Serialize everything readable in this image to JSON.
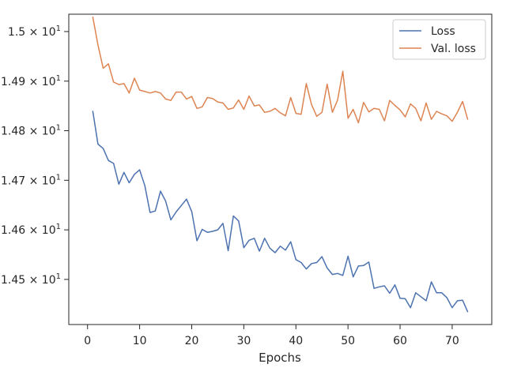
{
  "chart_data": {
    "type": "line",
    "xlabel": "Epochs",
    "ylabel": "",
    "xlim": [
      -3.6,
      77.6
    ],
    "ylim": [
      14.409,
      15.035
    ],
    "xticks": [
      0,
      10,
      20,
      30,
      40,
      50,
      60,
      70
    ],
    "yticks": [
      {
        "value": 14.5,
        "mantissa": "1.45",
        "exp": "1"
      },
      {
        "value": 14.6,
        "mantissa": "1.46",
        "exp": "1"
      },
      {
        "value": 14.7,
        "mantissa": "1.47",
        "exp": "1"
      },
      {
        "value": 14.8,
        "mantissa": "1.48",
        "exp": "1"
      },
      {
        "value": 14.9,
        "mantissa": "1.49",
        "exp": "1"
      },
      {
        "value": 15.0,
        "mantissa": "1.5",
        "exp": "1"
      }
    ],
    "tick_times": "×",
    "tick_base": "10",
    "legend_position": "top-right",
    "grid": false,
    "x": [
      1,
      2,
      3,
      4,
      5,
      6,
      7,
      8,
      9,
      10,
      11,
      12,
      13,
      14,
      15,
      16,
      17,
      18,
      19,
      20,
      21,
      22,
      23,
      24,
      25,
      26,
      27,
      28,
      29,
      30,
      31,
      32,
      33,
      34,
      35,
      36,
      37,
      38,
      39,
      40,
      41,
      42,
      43,
      44,
      45,
      46,
      47,
      48,
      49,
      50,
      51,
      52,
      53,
      54,
      55,
      56,
      57,
      58,
      59,
      60,
      61,
      62,
      63,
      64,
      65,
      66,
      67,
      68,
      69,
      70,
      71,
      72,
      73
    ],
    "series": [
      {
        "name": "Loss",
        "color": "#4c72b0",
        "values": [
          14.84,
          14.773,
          14.764,
          14.74,
          14.734,
          14.692,
          14.716,
          14.695,
          14.712,
          14.721,
          14.689,
          14.635,
          14.638,
          14.678,
          14.658,
          14.62,
          14.636,
          14.649,
          14.662,
          14.637,
          14.578,
          14.601,
          14.595,
          14.597,
          14.6,
          14.613,
          14.558,
          14.628,
          14.618,
          14.564,
          14.579,
          14.583,
          14.557,
          14.583,
          14.563,
          14.554,
          14.567,
          14.559,
          14.576,
          14.54,
          14.534,
          14.521,
          14.532,
          14.534,
          14.546,
          14.523,
          14.51,
          14.512,
          14.508,
          14.547,
          14.505,
          14.527,
          14.528,
          14.535,
          14.482,
          14.485,
          14.487,
          14.472,
          14.489,
          14.462,
          14.461,
          14.443,
          14.473,
          14.465,
          14.457,
          14.495,
          14.473,
          14.473,
          14.463,
          14.443,
          14.457,
          14.458,
          14.434
        ]
      },
      {
        "name": "Val. loss",
        "color": "#dd8452",
        "values": [
          15.03,
          14.973,
          14.926,
          14.935,
          14.898,
          14.893,
          14.895,
          14.876,
          14.906,
          14.882,
          14.879,
          14.876,
          14.879,
          14.876,
          14.864,
          14.861,
          14.878,
          14.878,
          14.864,
          14.869,
          14.845,
          14.848,
          14.867,
          14.865,
          14.858,
          14.856,
          14.843,
          14.846,
          14.862,
          14.843,
          14.87,
          14.85,
          14.852,
          14.837,
          14.839,
          14.845,
          14.836,
          14.83,
          14.867,
          14.835,
          14.833,
          14.895,
          14.853,
          14.829,
          14.837,
          14.894,
          14.837,
          14.862,
          14.92,
          14.825,
          14.843,
          14.816,
          14.857,
          14.838,
          14.845,
          14.843,
          14.82,
          14.861,
          14.851,
          14.842,
          14.828,
          14.854,
          14.845,
          14.82,
          14.856,
          14.823,
          14.839,
          14.834,
          14.83,
          14.819,
          14.837,
          14.859,
          14.822
        ]
      }
    ]
  }
}
